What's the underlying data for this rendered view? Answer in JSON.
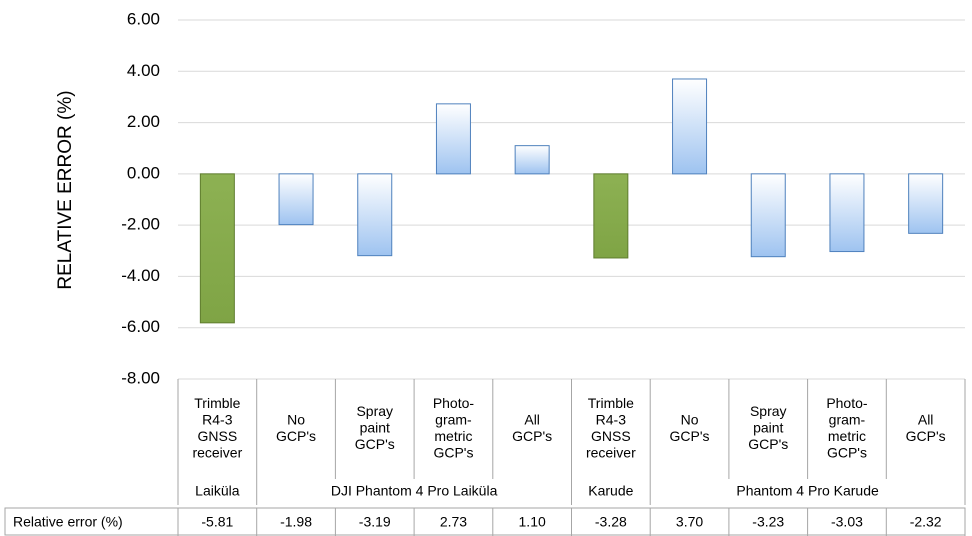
{
  "chart_data": {
    "type": "bar",
    "y_axis_label": "RELATIVE ERROR (%)",
    "categories": [
      [
        "Trimble",
        "R4-3",
        "GNSS",
        "receiver"
      ],
      [
        "No",
        "GCP's"
      ],
      [
        "Spray",
        "paint",
        "GCP's"
      ],
      [
        "Photo-",
        "gram-",
        "metric",
        "GCP's"
      ],
      [
        "All",
        "GCP's"
      ],
      [
        "Trimble",
        "R4-3",
        "GNSS",
        "receiver"
      ],
      [
        "No",
        "GCP's"
      ],
      [
        "Spray",
        "paint",
        "GCP's"
      ],
      [
        "Photo-",
        "gram-",
        "metric",
        "GCP's"
      ],
      [
        "All",
        "GCP's"
      ]
    ],
    "groups": [
      {
        "name": "Laiküla",
        "count": 1
      },
      {
        "name": "DJI Phantom 4 Pro Laiküla",
        "count": 4
      },
      {
        "name": "Karude",
        "count": 1
      },
      {
        "name": "Phantom 4 Pro Karude",
        "count": 4
      }
    ],
    "series_name": "Relative error (%)",
    "values": [
      -5.81,
      -1.98,
      -3.19,
      2.73,
      1.1,
      -3.28,
      3.7,
      -3.23,
      -3.03,
      -2.32
    ],
    "value_labels": [
      "-5.81",
      "-1.98",
      "-3.19",
      "2.73",
      "1.10",
      "-3.28",
      "3.70",
      "-3.23",
      "-3.03",
      "-2.32"
    ],
    "colors": [
      "#9bbb59",
      "#4f81bd",
      "#4f81bd",
      "#4f81bd",
      "#4f81bd",
      "#9bbb59",
      "#4f81bd",
      "#4f81bd",
      "#4f81bd",
      "#4f81bd"
    ],
    "ylim": [
      -8,
      6
    ],
    "yticks": [
      {
        "value": -8,
        "label": "-8.00"
      },
      {
        "value": -6,
        "label": "-6.00"
      },
      {
        "value": -4,
        "label": "-4.00"
      },
      {
        "value": -2,
        "label": "-2.00"
      },
      {
        "value": 0,
        "label": "0.00"
      },
      {
        "value": 2,
        "label": "2.00"
      },
      {
        "value": 4,
        "label": "4.00"
      },
      {
        "value": 6,
        "label": "6.00"
      }
    ],
    "grid": true
  }
}
